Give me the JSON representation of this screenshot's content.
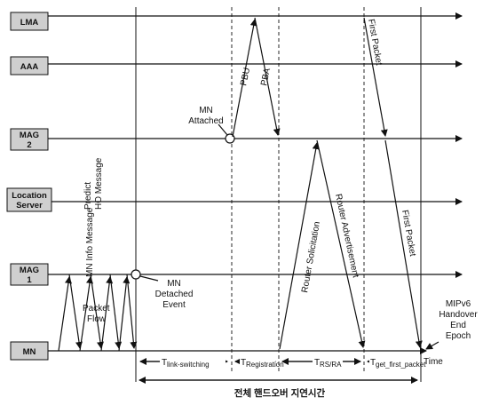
{
  "entities": {
    "lma": "LMA",
    "aaa": "AAA",
    "mag2": [
      "MAG",
      "2"
    ],
    "location_server": [
      "Location",
      "Server"
    ],
    "mag1": [
      "MAG",
      "1"
    ],
    "mn": "MN"
  },
  "messages": {
    "pbu": "PBU",
    "pba": "PBA",
    "first_packet_top": "First Packet",
    "first_packet_bottom": "First Packet",
    "router_solicitation": "Router Solicitation",
    "router_advertisement": "Router Advertisement",
    "predict_ho": [
      "Predict",
      "HO Message"
    ],
    "mn_info": "MN Info Message"
  },
  "events": {
    "mn_attached": [
      "MN",
      "Attached"
    ],
    "mn_detached": [
      "MN",
      "Detached",
      "Event"
    ],
    "packet_flow": [
      "Packet",
      "Flow"
    ],
    "handover_end": [
      "MIPv6",
      "Handover",
      "End",
      "Epoch"
    ],
    "time": "Time"
  },
  "intervals": {
    "t_link": "T",
    "t_link_sub": "link-switching",
    "t_reg": "T",
    "t_reg_sub": "Registration",
    "t_rs": "T",
    "t_rs_sub": "RS/RA",
    "t_first": "T",
    "t_first_sub": "get_first_packet",
    "total": "전체 핸드오버 지연시간"
  }
}
